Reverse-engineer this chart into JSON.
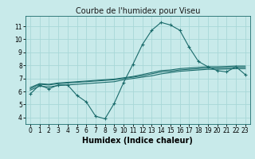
{
  "title": "Courbe de l'humidex pour Viseu",
  "xlabel": "Humidex (Indice chaleur)",
  "bg_color": "#c8eaea",
  "grid_color": "#a8d8d8",
  "line_color": "#1a6b6b",
  "xlim": [
    -0.5,
    23.5
  ],
  "ylim": [
    3.5,
    11.8
  ],
  "yticks": [
    4,
    5,
    6,
    7,
    8,
    9,
    10,
    11
  ],
  "xticks": [
    0,
    1,
    2,
    3,
    4,
    5,
    6,
    7,
    8,
    9,
    10,
    11,
    12,
    13,
    14,
    15,
    16,
    17,
    18,
    19,
    20,
    21,
    22,
    23
  ],
  "series1_x": [
    0,
    1,
    2,
    3,
    4,
    5,
    6,
    7,
    8,
    9,
    10,
    11,
    12,
    13,
    14,
    15,
    16,
    17,
    18,
    19,
    20,
    21,
    22,
    23
  ],
  "series1_y": [
    5.8,
    6.5,
    6.2,
    6.5,
    6.5,
    5.7,
    5.2,
    4.1,
    3.9,
    5.1,
    6.7,
    8.1,
    9.6,
    10.7,
    11.3,
    11.1,
    10.7,
    9.4,
    8.3,
    7.9,
    7.6,
    7.5,
    7.9,
    7.3
  ],
  "series2_x": [
    0,
    1,
    2,
    3,
    4,
    5,
    6,
    7,
    8,
    9,
    10,
    11,
    12,
    13,
    14,
    15,
    16,
    17,
    18,
    19,
    20,
    21,
    22,
    23
  ],
  "series2_y": [
    6.1,
    6.4,
    6.35,
    6.45,
    6.5,
    6.55,
    6.6,
    6.65,
    6.7,
    6.75,
    6.9,
    7.0,
    7.1,
    7.2,
    7.35,
    7.45,
    7.55,
    7.6,
    7.65,
    7.7,
    7.7,
    7.72,
    7.75,
    7.75
  ],
  "series3_x": [
    0,
    1,
    2,
    3,
    4,
    5,
    6,
    7,
    8,
    9,
    10,
    11,
    12,
    13,
    14,
    15,
    16,
    17,
    18,
    19,
    20,
    21,
    22,
    23
  ],
  "series3_y": [
    6.2,
    6.55,
    6.5,
    6.6,
    6.65,
    6.7,
    6.75,
    6.8,
    6.85,
    6.9,
    7.0,
    7.1,
    7.2,
    7.35,
    7.5,
    7.55,
    7.65,
    7.7,
    7.75,
    7.8,
    7.8,
    7.82,
    7.85,
    7.85
  ],
  "series4_x": [
    0,
    1,
    2,
    3,
    4,
    5,
    6,
    7,
    8,
    9,
    10,
    11,
    12,
    13,
    14,
    15,
    16,
    17,
    18,
    19,
    20,
    21,
    22,
    23
  ],
  "series4_y": [
    6.3,
    6.6,
    6.55,
    6.65,
    6.7,
    6.75,
    6.8,
    6.85,
    6.9,
    6.95,
    7.05,
    7.15,
    7.3,
    7.45,
    7.6,
    7.65,
    7.75,
    7.8,
    7.85,
    7.9,
    7.9,
    7.92,
    7.95,
    7.95
  ],
  "title_fontsize": 7,
  "xlabel_fontsize": 7,
  "tick_fontsize": 5.5
}
